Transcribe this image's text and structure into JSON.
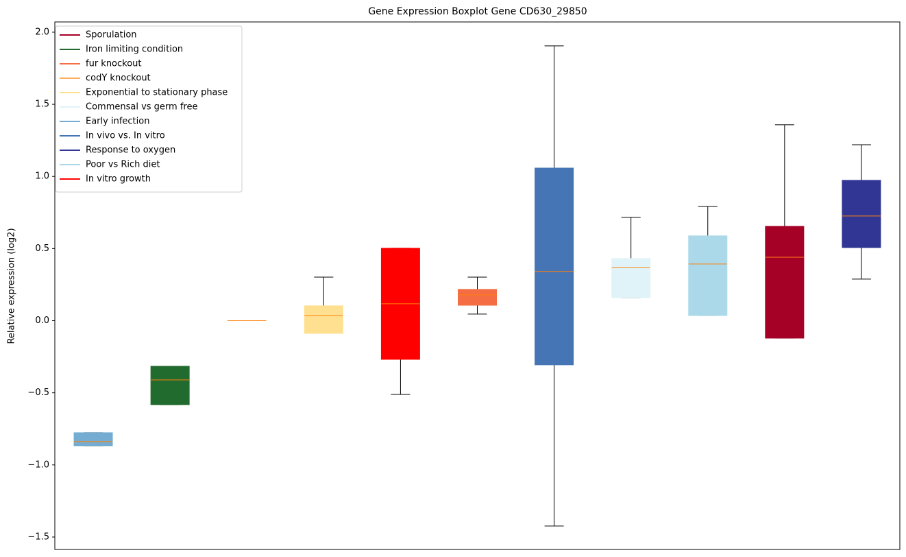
{
  "chart_data": {
    "type": "box",
    "title": "Gene Expression Boxplot Gene CD630_29850",
    "y_label": "Relative expression (log2)",
    "xlim": [
      0.5,
      11.5
    ],
    "ylim": [
      -1.586,
      2.071
    ],
    "yticks": [
      {
        "value": -1.5,
        "label": "−1.5"
      },
      {
        "value": -1,
        "label": "−1.0"
      },
      {
        "value": -0.5,
        "label": "−0.5"
      },
      {
        "value": 0,
        "label": "0.0"
      },
      0.5,
      {
        "value": 1,
        "label": "1.0"
      },
      1.5,
      {
        "value": 2,
        "label": "2.0"
      }
    ],
    "legend": "upper left",
    "median_color": "#ff7f0e",
    "series": [
      {
        "name": "Sporulation",
        "color": "#a50026",
        "x": 10,
        "min": -0.121,
        "q1": -0.121,
        "median": 0.44,
        "q3": 0.654,
        "max": 1.358
      },
      {
        "name": "Iron limiting condition",
        "color": "#226b2e",
        "x": 2,
        "min": -0.582,
        "q1": -0.582,
        "median": -0.411,
        "q3": -0.316,
        "max": -0.316
      },
      {
        "name": "fur knockout",
        "color": "#f46d43",
        "x": 6,
        "min": 0.046,
        "q1": 0.107,
        "median": 0.179,
        "q3": 0.217,
        "max": 0.302
      },
      {
        "name": "codY knockout",
        "color": "#fdae61",
        "x": 3,
        "min": 0,
        "q1": 0,
        "median": 0,
        "q3": 0,
        "max": 0
      },
      {
        "name": "Exponential to stationary phase",
        "color": "#fee090",
        "x": 4,
        "min": -0.088,
        "q1": -0.088,
        "median": 0.036,
        "q3": 0.103,
        "max": 0.302
      },
      {
        "name": "Commensal vs germ free",
        "color": "#e0f3f8",
        "x": 8,
        "min": 0.16,
        "q1": 0.16,
        "median": 0.369,
        "q3": 0.431,
        "max": 0.716
      },
      {
        "name": "Early infection",
        "color": "#74add1",
        "x": 1,
        "min": -0.867,
        "q1": -0.867,
        "median": -0.839,
        "q3": -0.777,
        "max": -0.777
      },
      {
        "name": "In vivo vs. In vitro",
        "color": "#4575b4",
        "x": 7,
        "min": -1.424,
        "q1": -0.306,
        "median": 0.341,
        "q3": 1.058,
        "max": 1.905
      },
      {
        "name": "Response to oxygen",
        "color": "#313695",
        "x": 11,
        "min": 0.288,
        "q1": 0.507,
        "median": 0.726,
        "q3": 0.973,
        "max": 1.22
      },
      {
        "name": "Poor vs Rich diet",
        "color": "#abd9e9",
        "x": 9,
        "min": 0.036,
        "q1": 0.036,
        "median": 0.393,
        "q3": 0.588,
        "max": 0.792
      },
      {
        "name": "In vitro growth",
        "color": "#ff0000",
        "x": 5,
        "min": -0.511,
        "q1": -0.268,
        "median": 0.117,
        "q3": 0.502,
        "max": 0.502
      }
    ]
  }
}
